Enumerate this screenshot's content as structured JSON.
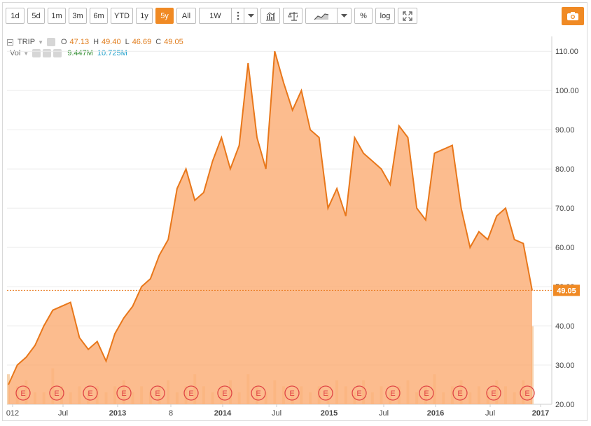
{
  "toolbar": {
    "ranges": [
      "1d",
      "5d",
      "1m",
      "3m",
      "6m",
      "YTD",
      "1y",
      "5y",
      "All"
    ],
    "active_range": "5y",
    "interval": "1W",
    "pct_label": "%",
    "log_label": "log",
    "icons": [
      "dots-menu-icon",
      "chevron-down-icon",
      "bar-chart-icon",
      "balance-scale-icon",
      "area-chart-icon",
      "chevron-down-icon",
      "fullscreen-icon",
      "camera-icon"
    ]
  },
  "legend": {
    "symbol": "TRIP",
    "o_label": "O",
    "o_value": "47.13",
    "h_label": "H",
    "h_value": "49.40",
    "l_label": "L",
    "l_value": "46.69",
    "c_label": "C",
    "c_value": "49.05",
    "vol_label": "Vol",
    "vol_a": "9.447M",
    "vol_b": "10.725M"
  },
  "colors": {
    "accent": "#f08a24",
    "line": "#e8771a",
    "fill": "#fbb07a",
    "earnings": "#e04545"
  },
  "chart_data": {
    "type": "area",
    "symbol": "TRIP",
    "x_labels": [
      "012",
      "Jul",
      "2013",
      "8",
      "2014",
      "Jul",
      "2015",
      "Jul",
      "2016",
      "Jul",
      "2017"
    ],
    "y_ticks": [
      "20.00",
      "30.00",
      "40.00",
      "50.00",
      "60.00",
      "70.00",
      "80.00",
      "90.00",
      "100.00",
      "110.00"
    ],
    "ylim": [
      20,
      112
    ],
    "last_price": "49.05",
    "earnings_marker": "E",
    "earnings_count": 16,
    "x": [
      "2012-01",
      "2012-02",
      "2012-03",
      "2012-04",
      "2012-05",
      "2012-06",
      "2012-07",
      "2012-08",
      "2012-09",
      "2012-10",
      "2012-11",
      "2012-12",
      "2013-01",
      "2013-02",
      "2013-03",
      "2013-04",
      "2013-05",
      "2013-06",
      "2013-07",
      "2013-08",
      "2013-09",
      "2013-10",
      "2013-11",
      "2013-12",
      "2014-01",
      "2014-02",
      "2014-03",
      "2014-04",
      "2014-05",
      "2014-06",
      "2014-07",
      "2014-08",
      "2014-09",
      "2014-10",
      "2014-11",
      "2014-12",
      "2015-01",
      "2015-02",
      "2015-03",
      "2015-04",
      "2015-05",
      "2015-06",
      "2015-07",
      "2015-08",
      "2015-09",
      "2015-10",
      "2015-11",
      "2015-12",
      "2016-01",
      "2016-02",
      "2016-03",
      "2016-04",
      "2016-05",
      "2016-06",
      "2016-07",
      "2016-08",
      "2016-09",
      "2016-10",
      "2016-11",
      "2016-12"
    ],
    "values": [
      25,
      30,
      32,
      35,
      40,
      44,
      45,
      46,
      37,
      34,
      36,
      31,
      38,
      42,
      45,
      50,
      52,
      58,
      62,
      75,
      80,
      72,
      74,
      82,
      88,
      80,
      86,
      107,
      88,
      80,
      110,
      102,
      95,
      100,
      90,
      88,
      70,
      75,
      68,
      88,
      84,
      82,
      80,
      76,
      91,
      88,
      70,
      67,
      84,
      85,
      86,
      70,
      60,
      64,
      62,
      68,
      70,
      62,
      61,
      49
    ],
    "volume": [
      5,
      3,
      4,
      2,
      2,
      6,
      3,
      2,
      3,
      2,
      3,
      2,
      3,
      4,
      2,
      3,
      2,
      3,
      4,
      2,
      3,
      5,
      3,
      2,
      3,
      4,
      2,
      5,
      3,
      2,
      4,
      3,
      2,
      3,
      2,
      3,
      2,
      4,
      3,
      2,
      4,
      2,
      3,
      2,
      3,
      4,
      2,
      3,
      5,
      2,
      3,
      4,
      2,
      3,
      2,
      4,
      3,
      2,
      4,
      13
    ]
  }
}
